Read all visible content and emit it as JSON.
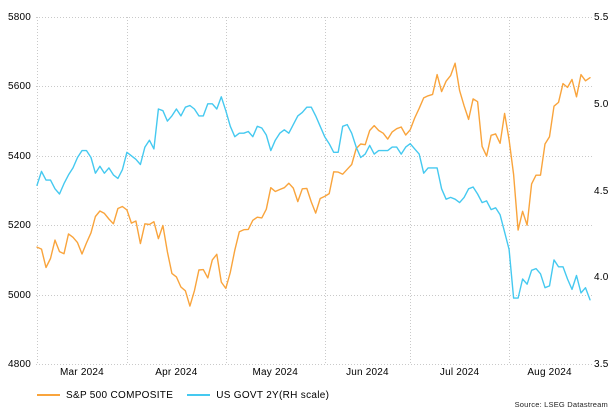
{
  "chart_data": {
    "type": "line",
    "title": "",
    "x_unit": "daily trading sessions, Mar 2024 - Aug 2024",
    "left_axis": {
      "labels": [
        "5800",
        "5600",
        "5400",
        "5200",
        "5000",
        "4800"
      ],
      "min": 4800,
      "max": 5800
    },
    "right_axis": {
      "labels": [
        "5.5",
        "5.0",
        "4.5",
        "4.0",
        "3.5"
      ],
      "min": 3.5,
      "max": 5.5
    },
    "x_axis": {
      "month_labels": [
        "Mar 2024",
        "Apr 2024",
        "May 2024",
        "Jun 2024",
        "Jul 2024",
        "Aug 2024"
      ],
      "gridline_indices": [
        0,
        20,
        42,
        64,
        83,
        105
      ],
      "label_center_indices": [
        10,
        31,
        53,
        73.5,
        94,
        114
      ],
      "total_points": 124
    },
    "grid": {
      "on": true,
      "color": "#c9c9c9"
    },
    "legend_position": "bottom-left",
    "series": [
      {
        "name": "S&P 500 COMPOSITE",
        "color": "#F9A43C",
        "axis": "left",
        "values": [
          5137,
          5131,
          5078,
          5104,
          5157,
          5124,
          5118,
          5175,
          5165,
          5150,
          5117,
          5149,
          5178,
          5225,
          5241,
          5234,
          5218,
          5204,
          5248,
          5254,
          5244,
          5206,
          5212,
          5147,
          5204,
          5202,
          5210,
          5161,
          5199,
          5123,
          5061,
          5051,
          5022,
          5011,
          4967,
          5011,
          5071,
          5072,
          5048,
          5100,
          5116,
          5036,
          5018,
          5064,
          5128,
          5181,
          5187,
          5188,
          5214,
          5223,
          5221,
          5246,
          5308,
          5297,
          5303,
          5308,
          5321,
          5307,
          5268,
          5305,
          5306,
          5267,
          5235,
          5277,
          5283,
          5291,
          5354,
          5353,
          5347,
          5361,
          5375,
          5421,
          5434,
          5432,
          5473,
          5487,
          5473,
          5465,
          5448,
          5469,
          5478,
          5483,
          5460,
          5475,
          5509,
          5537,
          5567,
          5573,
          5577,
          5634,
          5585,
          5615,
          5631,
          5667,
          5588,
          5544,
          5505,
          5564,
          5556,
          5427,
          5399,
          5459,
          5463,
          5436,
          5522,
          5446,
          5346,
          5186,
          5240,
          5200,
          5319,
          5344,
          5344,
          5434,
          5455,
          5543,
          5554,
          5608,
          5597,
          5620,
          5570,
          5634,
          5616,
          5625
        ]
      },
      {
        "name": "US GOVT 2Y(RH scale)",
        "color": "#45C9F0",
        "axis": "right",
        "values": [
          4.53,
          4.61,
          4.56,
          4.56,
          4.51,
          4.48,
          4.54,
          4.59,
          4.63,
          4.69,
          4.73,
          4.73,
          4.69,
          4.6,
          4.64,
          4.6,
          4.63,
          4.59,
          4.57,
          4.62,
          4.72,
          4.7,
          4.68,
          4.65,
          4.75,
          4.79,
          4.74,
          4.97,
          4.96,
          4.9,
          4.93,
          4.97,
          4.93,
          4.98,
          4.99,
          4.97,
          4.93,
          4.93,
          5.0,
          5.0,
          4.97,
          5.04,
          4.96,
          4.87,
          4.81,
          4.83,
          4.83,
          4.84,
          4.81,
          4.87,
          4.86,
          4.82,
          4.73,
          4.79,
          4.83,
          4.85,
          4.83,
          4.88,
          4.93,
          4.95,
          4.98,
          4.98,
          4.93,
          4.87,
          4.81,
          4.77,
          4.72,
          4.72,
          4.87,
          4.88,
          4.83,
          4.75,
          4.69,
          4.71,
          4.76,
          4.71,
          4.73,
          4.73,
          4.73,
          4.75,
          4.75,
          4.71,
          4.75,
          4.77,
          4.74,
          4.71,
          4.6,
          4.63,
          4.63,
          4.63,
          4.51,
          4.45,
          4.46,
          4.45,
          4.43,
          4.46,
          4.51,
          4.52,
          4.48,
          4.43,
          4.44,
          4.39,
          4.4,
          4.36,
          4.26,
          4.16,
          3.88,
          3.88,
          3.99,
          3.96,
          4.04,
          4.05,
          4.02,
          3.94,
          3.95,
          4.1,
          4.06,
          4.06,
          3.99,
          3.93,
          4.01,
          3.91,
          3.94,
          3.87
        ]
      }
    ],
    "source_note": "Source: LSEG Datastream"
  }
}
